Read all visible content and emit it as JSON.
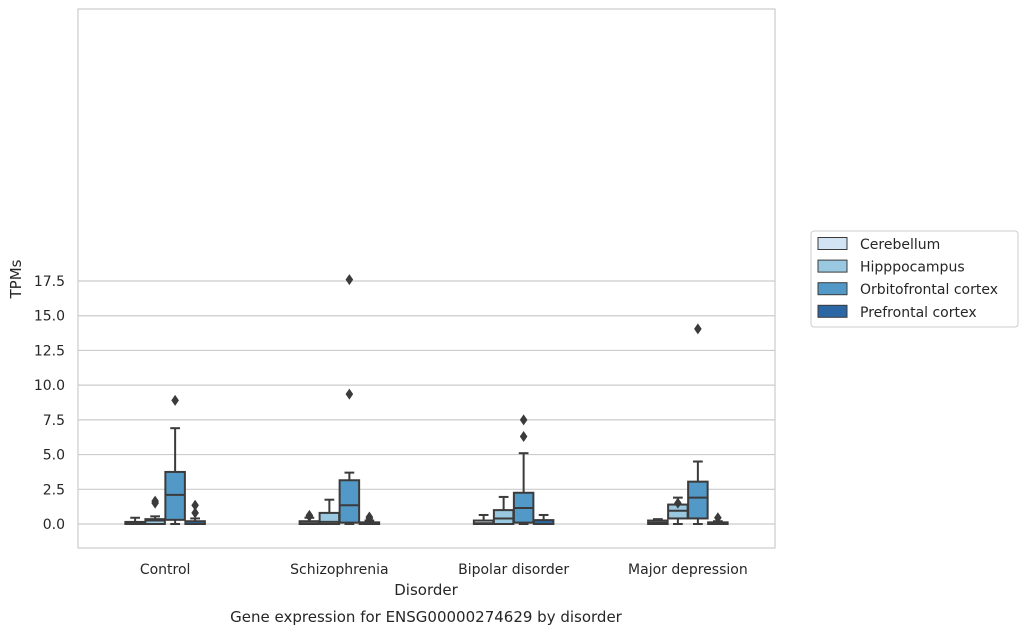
{
  "chart_data": {
    "type": "box",
    "caption": "Gene expression for ENSG00000274629 by disorder",
    "xlabel": "Disorder",
    "ylabel": "TPMs",
    "ylim": [
      -0.8,
      18.5
    ],
    "yticks": [
      "0.0",
      "2.5",
      "5.0",
      "7.5",
      "10.0",
      "12.5",
      "15.0",
      "17.5"
    ],
    "ytick_values": [
      0,
      2.5,
      5,
      7.5,
      10,
      12.5,
      15,
      17.5
    ],
    "grid": "horizontal",
    "legend_position": "right",
    "categories": [
      "Control",
      "Schizophrenia",
      "Bipolar disorder",
      "Major depression"
    ],
    "series": [
      {
        "name": "Cerebellum",
        "color": "#d2e3f3",
        "boxes": [
          {
            "whislo": 0.0,
            "q1": 0.0,
            "med": 0.05,
            "q3": 0.15,
            "whishi": 0.45,
            "fliers": []
          },
          {
            "whislo": 0.0,
            "q1": 0.0,
            "med": 0.05,
            "q3": 0.2,
            "whishi": 0.45,
            "fliers": [
              0.55,
              0.62
            ]
          },
          {
            "whislo": 0.0,
            "q1": 0.0,
            "med": 0.05,
            "q3": 0.25,
            "whishi": 0.65,
            "fliers": []
          },
          {
            "whislo": 0.0,
            "q1": 0.0,
            "med": 0.1,
            "q3": 0.25,
            "whishi": 0.35,
            "fliers": []
          }
        ]
      },
      {
        "name": "Hipppocampus",
        "color": "#9ac8e0",
        "boxes": [
          {
            "whislo": 0.0,
            "q1": 0.0,
            "med": 0.25,
            "q3": 0.35,
            "whishi": 0.55,
            "fliers": [
              1.5,
              1.65
            ]
          },
          {
            "whislo": 0.0,
            "q1": 0.0,
            "med": 0.15,
            "q3": 0.8,
            "whishi": 1.75,
            "fliers": []
          },
          {
            "whislo": 0.0,
            "q1": 0.0,
            "med": 0.4,
            "q3": 1.0,
            "whishi": 1.95,
            "fliers": []
          },
          {
            "whislo": 0.0,
            "q1": 0.4,
            "med": 0.95,
            "q3": 1.4,
            "whishi": 1.9,
            "fliers": [
              1.5
            ]
          }
        ]
      },
      {
        "name": "Orbitofrontal cortex",
        "color": "#5299c8",
        "boxes": [
          {
            "whislo": 0.0,
            "q1": 0.3,
            "med": 2.1,
            "q3": 3.75,
            "whishi": 6.9,
            "fliers": [
              8.9
            ]
          },
          {
            "whislo": 0.0,
            "q1": 0.1,
            "med": 1.35,
            "q3": 3.15,
            "whishi": 3.7,
            "fliers": [
              9.35,
              17.6
            ]
          },
          {
            "whislo": 0.0,
            "q1": 0.1,
            "med": 1.15,
            "q3": 2.25,
            "whishi": 5.1,
            "fliers": [
              6.3,
              7.5
            ]
          },
          {
            "whislo": 0.0,
            "q1": 0.4,
            "med": 1.9,
            "q3": 3.05,
            "whishi": 4.5,
            "fliers": [
              14.05
            ]
          }
        ]
      },
      {
        "name": "Prefrontal cortex",
        "color": "#2a67a4",
        "boxes": [
          {
            "whislo": 0.0,
            "q1": 0.0,
            "med": 0.0,
            "q3": 0.2,
            "whishi": 0.4,
            "fliers": [
              0.8,
              1.35
            ]
          },
          {
            "whislo": 0.0,
            "q1": 0.0,
            "med": 0.0,
            "q3": 0.12,
            "whishi": 0.25,
            "fliers": [
              0.4,
              0.5
            ]
          },
          {
            "whislo": 0.0,
            "q1": 0.0,
            "med": 0.0,
            "q3": 0.28,
            "whishi": 0.65,
            "fliers": []
          },
          {
            "whislo": 0.0,
            "q1": 0.0,
            "med": 0.0,
            "q3": 0.12,
            "whishi": 0.2,
            "fliers": [
              0.45
            ]
          }
        ]
      }
    ]
  }
}
